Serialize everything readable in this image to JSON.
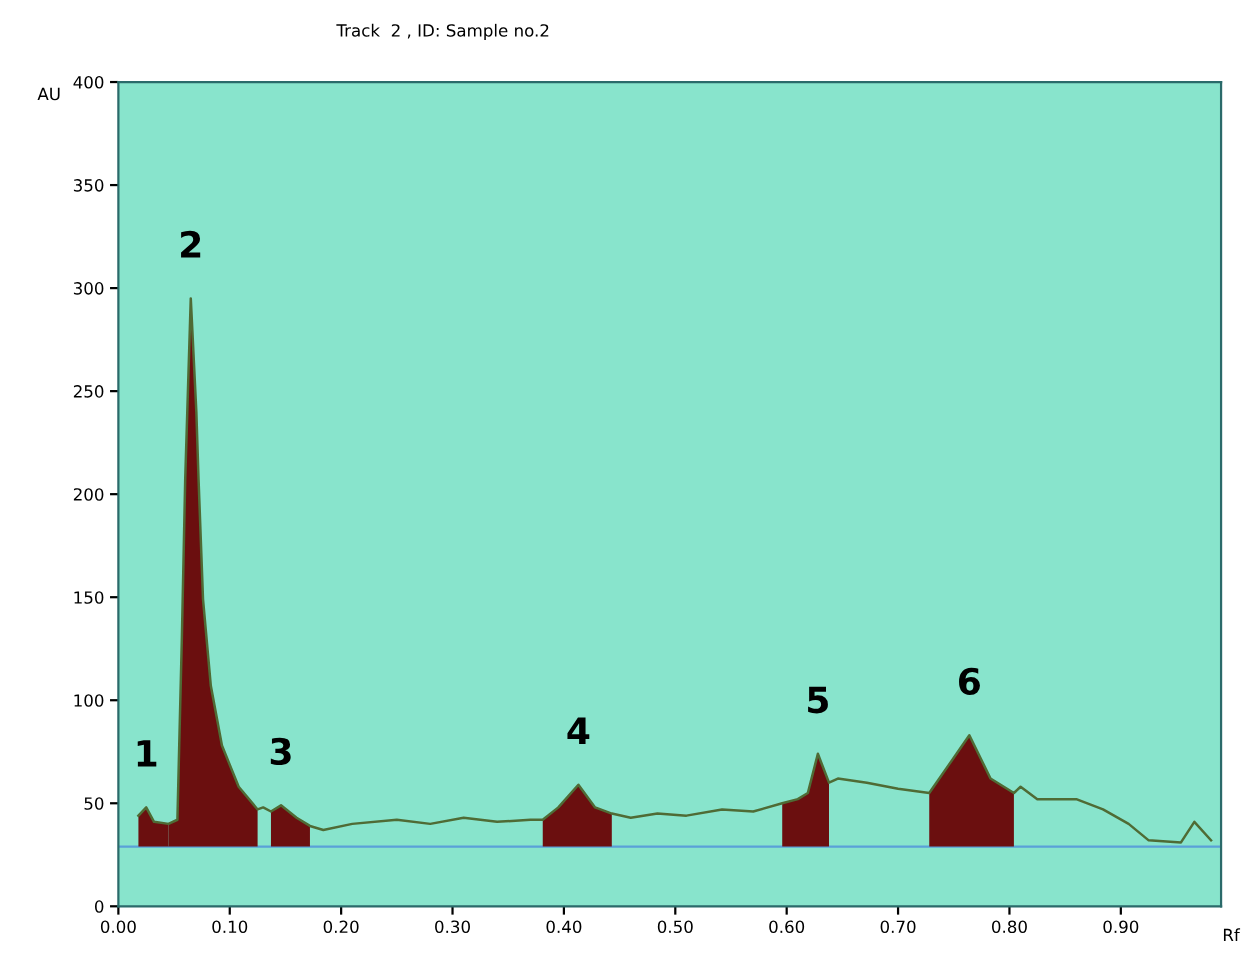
{
  "chart_data": {
    "type": "line",
    "title": "Track  2 , ID: Sample no.2",
    "xlabel": "Rf",
    "ylabel": "AU",
    "xlim": [
      0,
      0.99
    ],
    "ylim": [
      0,
      400
    ],
    "xticks": [
      {
        "value": 0,
        "label": "0.00"
      },
      {
        "value": 0.1,
        "label": "0.10"
      },
      {
        "value": 0.2,
        "label": "0.20"
      },
      {
        "value": 0.3,
        "label": "0.30"
      },
      {
        "value": 0.4,
        "label": "0.40"
      },
      {
        "value": 0.5,
        "label": "0.50"
      },
      {
        "value": 0.6,
        "label": "0.60"
      },
      {
        "value": 0.7,
        "label": "0.70"
      },
      {
        "value": 0.8,
        "label": "0.80"
      },
      {
        "value": 0.9,
        "label": "0.90"
      }
    ],
    "yticks": [
      0,
      50,
      100,
      150,
      200,
      250,
      300,
      350,
      400
    ],
    "grid": false,
    "legend": false,
    "ref_lines": [
      {
        "axis": "y",
        "value": 29,
        "color": "#5aa0d8"
      }
    ],
    "series": [
      {
        "color": "#4f6b35",
        "x": [
          0.018,
          0.025,
          0.032,
          0.045,
          0.053,
          0.057,
          0.06,
          0.065,
          0.07,
          0.072,
          0.076,
          0.083,
          0.093,
          0.108,
          0.125,
          0.13,
          0.137,
          0.146,
          0.16,
          0.172,
          0.184,
          0.21,
          0.25,
          0.28,
          0.31,
          0.34,
          0.37,
          0.381,
          0.395,
          0.413,
          0.428,
          0.443,
          0.46,
          0.484,
          0.51,
          0.542,
          0.57,
          0.596,
          0.61,
          0.619,
          0.628,
          0.638,
          0.646,
          0.672,
          0.7,
          0.728,
          0.746,
          0.764,
          0.783,
          0.804,
          0.81,
          0.825,
          0.86,
          0.884,
          0.907,
          0.925,
          0.954,
          0.966,
          0.981
        ],
        "values": [
          44,
          48,
          41,
          40,
          42,
          130,
          207,
          295,
          240,
          207,
          149,
          107,
          78,
          58,
          47,
          48,
          46,
          49,
          43,
          39,
          37,
          40,
          42,
          40,
          43,
          41,
          42,
          42,
          48,
          59,
          48,
          45,
          43,
          45,
          44,
          47,
          46,
          50,
          52,
          55,
          74,
          60,
          62,
          60,
          57,
          55,
          69,
          83,
          62,
          55,
          58,
          52,
          52,
          47,
          40,
          32,
          31,
          41,
          32
        ]
      },
      {
        "type": "area",
        "color": "#6b0f0f",
        "x": [
          0.018,
          0.025,
          0.032,
          0.045
        ],
        "values": [
          44,
          48,
          41,
          40
        ]
      },
      {
        "type": "area",
        "color": "#6b0f0f",
        "x": [
          0.045,
          0.053,
          0.057,
          0.06,
          0.065,
          0.07,
          0.072,
          0.076,
          0.083,
          0.093,
          0.108,
          0.125
        ],
        "values": [
          40,
          42,
          130,
          207,
          295,
          240,
          207,
          149,
          107,
          78,
          58,
          47
        ]
      },
      {
        "type": "area",
        "color": "#6b0f0f",
        "x": [
          0.137,
          0.146,
          0.16,
          0.172
        ],
        "values": [
          46,
          49,
          43,
          39
        ]
      },
      {
        "type": "area",
        "color": "#6b0f0f",
        "x": [
          0.381,
          0.395,
          0.413,
          0.428,
          0.443
        ],
        "values": [
          42,
          48,
          59,
          48,
          45
        ]
      },
      {
        "type": "area",
        "color": "#6b0f0f",
        "x": [
          0.596,
          0.61,
          0.619,
          0.628,
          0.638
        ],
        "values": [
          50,
          52,
          55,
          74,
          60
        ]
      },
      {
        "type": "area",
        "color": "#6b0f0f",
        "x": [
          0.728,
          0.746,
          0.764,
          0.783,
          0.804
        ],
        "values": [
          55,
          69,
          83,
          62,
          55
        ]
      }
    ],
    "annotations": [
      {
        "text": "1",
        "x": 0.025,
        "y": 48
      },
      {
        "text": "2",
        "x": 0.065,
        "y": 295
      },
      {
        "text": "3",
        "x": 0.146,
        "y": 49
      },
      {
        "text": "4",
        "x": 0.413,
        "y": 59
      },
      {
        "text": "5",
        "x": 0.628,
        "y": 74
      },
      {
        "text": "6",
        "x": 0.764,
        "y": 83
      }
    ]
  }
}
